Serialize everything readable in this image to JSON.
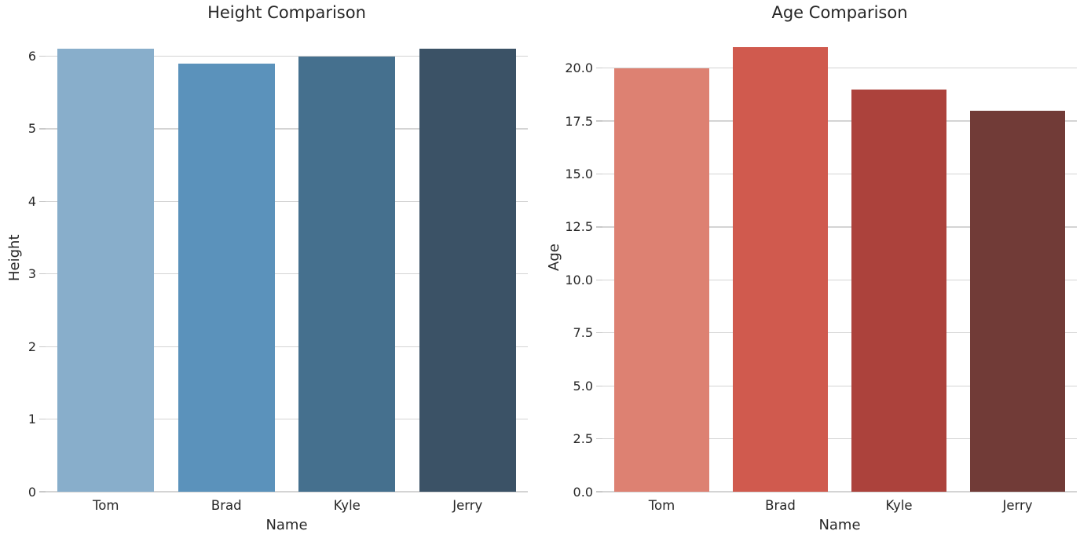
{
  "figure": {
    "background": "#ffffff",
    "text_color": "#262626",
    "grid_color": "#d4d4d4",
    "tick_mark_color": "#c9c9c9"
  },
  "chart_data": [
    {
      "type": "bar",
      "title": "Height Comparison",
      "xlabel": "Name",
      "ylabel": "Height",
      "categories": [
        "Tom",
        "Brad",
        "Kyle",
        "Jerry"
      ],
      "values": [
        6.1,
        5.9,
        6.0,
        6.1
      ],
      "bar_colors": [
        "#88aecb",
        "#5b92bb",
        "#45708e",
        "#3b5266"
      ],
      "ytick_values": [
        0,
        1,
        2,
        3,
        4,
        5,
        6
      ],
      "ytick_labels": [
        "0",
        "1",
        "2",
        "3",
        "4",
        "5",
        "6"
      ],
      "ylim": [
        0,
        6.45
      ],
      "grid": "horizontal",
      "legend": "none"
    },
    {
      "type": "bar",
      "title": "Age Comparison",
      "xlabel": "Name",
      "ylabel": "Age",
      "categories": [
        "Tom",
        "Brad",
        "Kyle",
        "Jerry"
      ],
      "values": [
        20,
        21,
        19,
        18
      ],
      "bar_colors": [
        "#dd8172",
        "#d05a4e",
        "#ac423c",
        "#713b37"
      ],
      "ytick_values": [
        0,
        2.5,
        5,
        7.5,
        10,
        12.5,
        15,
        17.5,
        20
      ],
      "ytick_labels": [
        "0.0",
        "2.5",
        "5.0",
        "7.5",
        "10.0",
        "12.5",
        "15.0",
        "17.5",
        "20.0"
      ],
      "ylim": [
        0,
        22.1
      ],
      "grid": "horizontal",
      "legend": "none"
    }
  ]
}
